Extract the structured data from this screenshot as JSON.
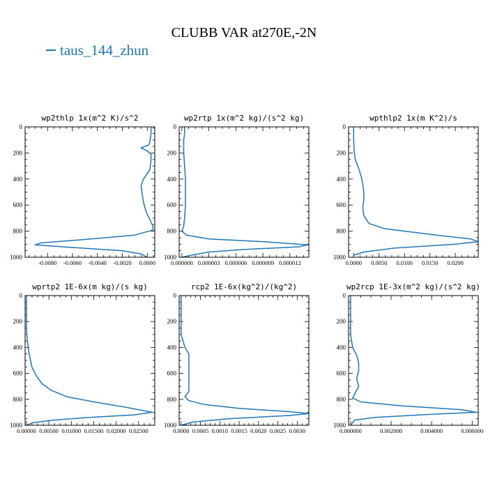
{
  "title": "CLUBB VAR at270E,-2N",
  "legend": {
    "label": "taus_144_zhun",
    "color": "#1f77b4"
  },
  "chart_data": [
    {
      "type": "line",
      "title": "wp2thlp  1x(m^2 K)/s^2",
      "xlim": [
        -0.0098,
        0.0006
      ],
      "ylim": [
        1000,
        0
      ],
      "y_ticks": [
        0,
        200,
        400,
        600,
        800,
        1000
      ],
      "x_ticks": [
        {
          "value": -0.008,
          "label": "-0.0080"
        },
        {
          "value": -0.006,
          "label": "-0.0060"
        },
        {
          "value": -0.004,
          "label": "-0.0040"
        },
        {
          "value": -0.002,
          "label": "-0.0020"
        },
        {
          "value": 0.0,
          "label": "0.0000"
        }
      ],
      "series": [
        {
          "color": "#1f77b4",
          "x": [
            0.0003,
            0.0003,
            0.0002,
            0.0001,
            -0.0005,
            0.0,
            0.0003,
            0.0003,
            0.0002,
            -0.0003,
            -0.0005,
            -0.0004,
            -0.0003,
            -0.0001,
            0.0004,
            0.0005,
            -0.001,
            -0.0045,
            -0.0085,
            -0.009,
            -0.006,
            -0.002,
            -0.0005,
            0.0
          ],
          "y": [
            0,
            60,
            120,
            140,
            160,
            185,
            210,
            260,
            330,
            400,
            450,
            520,
            580,
            650,
            750,
            790,
            830,
            860,
            890,
            905,
            925,
            950,
            975,
            1000
          ]
        }
      ]
    },
    {
      "type": "line",
      "title": "wp2rtp  1x(m^2 kg)/(s^2 kg)",
      "xlim": [
        -3e-07,
        1.41e-05
      ],
      "ylim": [
        1000,
        0
      ],
      "y_ticks": [
        0,
        200,
        400,
        600,
        800,
        1000
      ],
      "x_ticks": [
        {
          "value": 0.0,
          "label": "0.000000"
        },
        {
          "value": 3e-06,
          "label": "0.000003"
        },
        {
          "value": 6e-06,
          "label": "0.000006"
        },
        {
          "value": 9e-06,
          "label": "0.000009"
        },
        {
          "value": 1.2e-05,
          "label": "0.000012"
        }
      ],
      "series": [
        {
          "color": "#1f77b4",
          "x": [
            3e-07,
            3e-07,
            2e-07,
            2e-07,
            3e-07,
            4e-07,
            4e-07,
            4e-07,
            3e-07,
            2e-07,
            0.0,
            5e-07,
            3e-06,
            9e-06,
            1.4e-05,
            1.3e-05,
            7e-06,
            3e-06,
            1e-06,
            0.0
          ],
          "y": [
            0,
            50,
            100,
            200,
            300,
            400,
            500,
            600,
            700,
            760,
            800,
            830,
            860,
            880,
            905,
            920,
            940,
            960,
            985,
            1000
          ]
        }
      ]
    },
    {
      "type": "line",
      "title": "wpthlp2  1x(m K^2)/s",
      "xlim": [
        -0.001,
        0.0245
      ],
      "ylim": [
        1000,
        0
      ],
      "y_ticks": [
        0,
        200,
        400,
        600,
        800,
        1000
      ],
      "x_ticks": [
        {
          "value": 0.0,
          "label": "0.0000"
        },
        {
          "value": 0.005,
          "label": "0.0050"
        },
        {
          "value": 0.01,
          "label": "0.0100"
        },
        {
          "value": 0.015,
          "label": "0.0150"
        },
        {
          "value": 0.02,
          "label": "0.0200"
        }
      ],
      "series": [
        {
          "color": "#1f77b4",
          "x": [
            0.0,
            0.0,
            0.0001,
            0.0003,
            0.001,
            0.0015,
            0.0018,
            0.002,
            0.002,
            0.0018,
            0.002,
            0.003,
            0.006,
            0.014,
            0.023,
            0.0245,
            0.02,
            0.008,
            0.002,
            0.0,
            0.0
          ],
          "y": [
            0,
            100,
            180,
            250,
            320,
            380,
            440,
            500,
            560,
            620,
            680,
            740,
            780,
            820,
            860,
            880,
            900,
            930,
            960,
            985,
            1000
          ]
        }
      ]
    },
    {
      "type": "line",
      "title": "wprtp2  1E-6x(m kg)/(s kg)",
      "xlim": [
        -0.0003,
        0.0286
      ],
      "ylim": [
        1000,
        0
      ],
      "y_ticks": [
        0,
        200,
        400,
        600,
        800,
        1000
      ],
      "x_ticks": [
        {
          "value": 0.0,
          "label": "0.00000"
        },
        {
          "value": 0.005,
          "label": "0.00500"
        },
        {
          "value": 0.01,
          "label": "0.01000"
        },
        {
          "value": 0.015,
          "label": "0.01500"
        },
        {
          "value": 0.02,
          "label": "0.02000"
        },
        {
          "value": 0.025,
          "label": "0.02500"
        }
      ],
      "series": [
        {
          "color": "#1f77b4",
          "x": [
            0.0,
            0.0,
            0.0,
            0.0002,
            0.0006,
            0.0012,
            0.0022,
            0.0035,
            0.0055,
            0.009,
            0.015,
            0.022,
            0.028,
            0.024,
            0.014,
            0.006,
            0.0015,
            0.0
          ],
          "y": [
            0,
            150,
            250,
            350,
            450,
            550,
            620,
            680,
            730,
            780,
            820,
            860,
            900,
            920,
            940,
            960,
            980,
            1000
          ]
        }
      ]
    },
    {
      "type": "line",
      "title": "rcp2  1E-6x(kg^2)/(kg^2)",
      "xlim": [
        -5e-05,
        0.0033
      ],
      "ylim": [
        1000,
        0
      ],
      "y_ticks": [
        0,
        200,
        400,
        600,
        800,
        1000
      ],
      "x_ticks": [
        {
          "value": 0.0,
          "label": "0.0000"
        },
        {
          "value": 0.0005,
          "label": "0.0005"
        },
        {
          "value": 0.001,
          "label": "0.0010"
        },
        {
          "value": 0.0015,
          "label": "0.0015"
        },
        {
          "value": 0.002,
          "label": "0.0020"
        },
        {
          "value": 0.0025,
          "label": "0.0025"
        },
        {
          "value": 0.003,
          "label": "0.0030"
        }
      ],
      "series": [
        {
          "color": "#1f77b4",
          "x": [
            0.0,
            0.0,
            0.0001,
            0.0002,
            0.0002,
            0.0002,
            0.0002,
            0.0002,
            0.0001,
            0.0002,
            0.0006,
            0.0015,
            0.0028,
            0.0033,
            0.0028,
            0.0012,
            0.0003,
            0.0
          ],
          "y": [
            0,
            300,
            400,
            450,
            520,
            600,
            680,
            740,
            780,
            810,
            840,
            870,
            895,
            910,
            925,
            950,
            975,
            1000
          ]
        }
      ]
    },
    {
      "type": "line",
      "title": "wp2rcp  1E-3x(m^2 kg)/(s^2 kg)",
      "xlim": [
        -0.0001,
        0.0063
      ],
      "ylim": [
        1000,
        0
      ],
      "y_ticks": [
        0,
        200,
        400,
        600,
        800,
        1000
      ],
      "x_ticks": [
        {
          "value": 0.0,
          "label": "0.000000"
        },
        {
          "value": 0.002,
          "label": "0.002000"
        },
        {
          "value": 0.004,
          "label": "0.004000"
        },
        {
          "value": 0.006,
          "label": "0.006000"
        }
      ],
      "series": [
        {
          "color": "#1f77b4",
          "x": [
            0.0,
            0.0,
            0.0001,
            0.0003,
            0.0004,
            0.0004,
            0.0003,
            0.0004,
            0.0002,
            0.0001,
            0.0005,
            0.0025,
            0.0055,
            0.0062,
            0.004,
            0.0012,
            0.0002,
            0.0
          ],
          "y": [
            0,
            300,
            400,
            460,
            520,
            580,
            640,
            700,
            760,
            790,
            820,
            850,
            880,
            900,
            915,
            940,
            960,
            1000
          ]
        }
      ]
    }
  ]
}
